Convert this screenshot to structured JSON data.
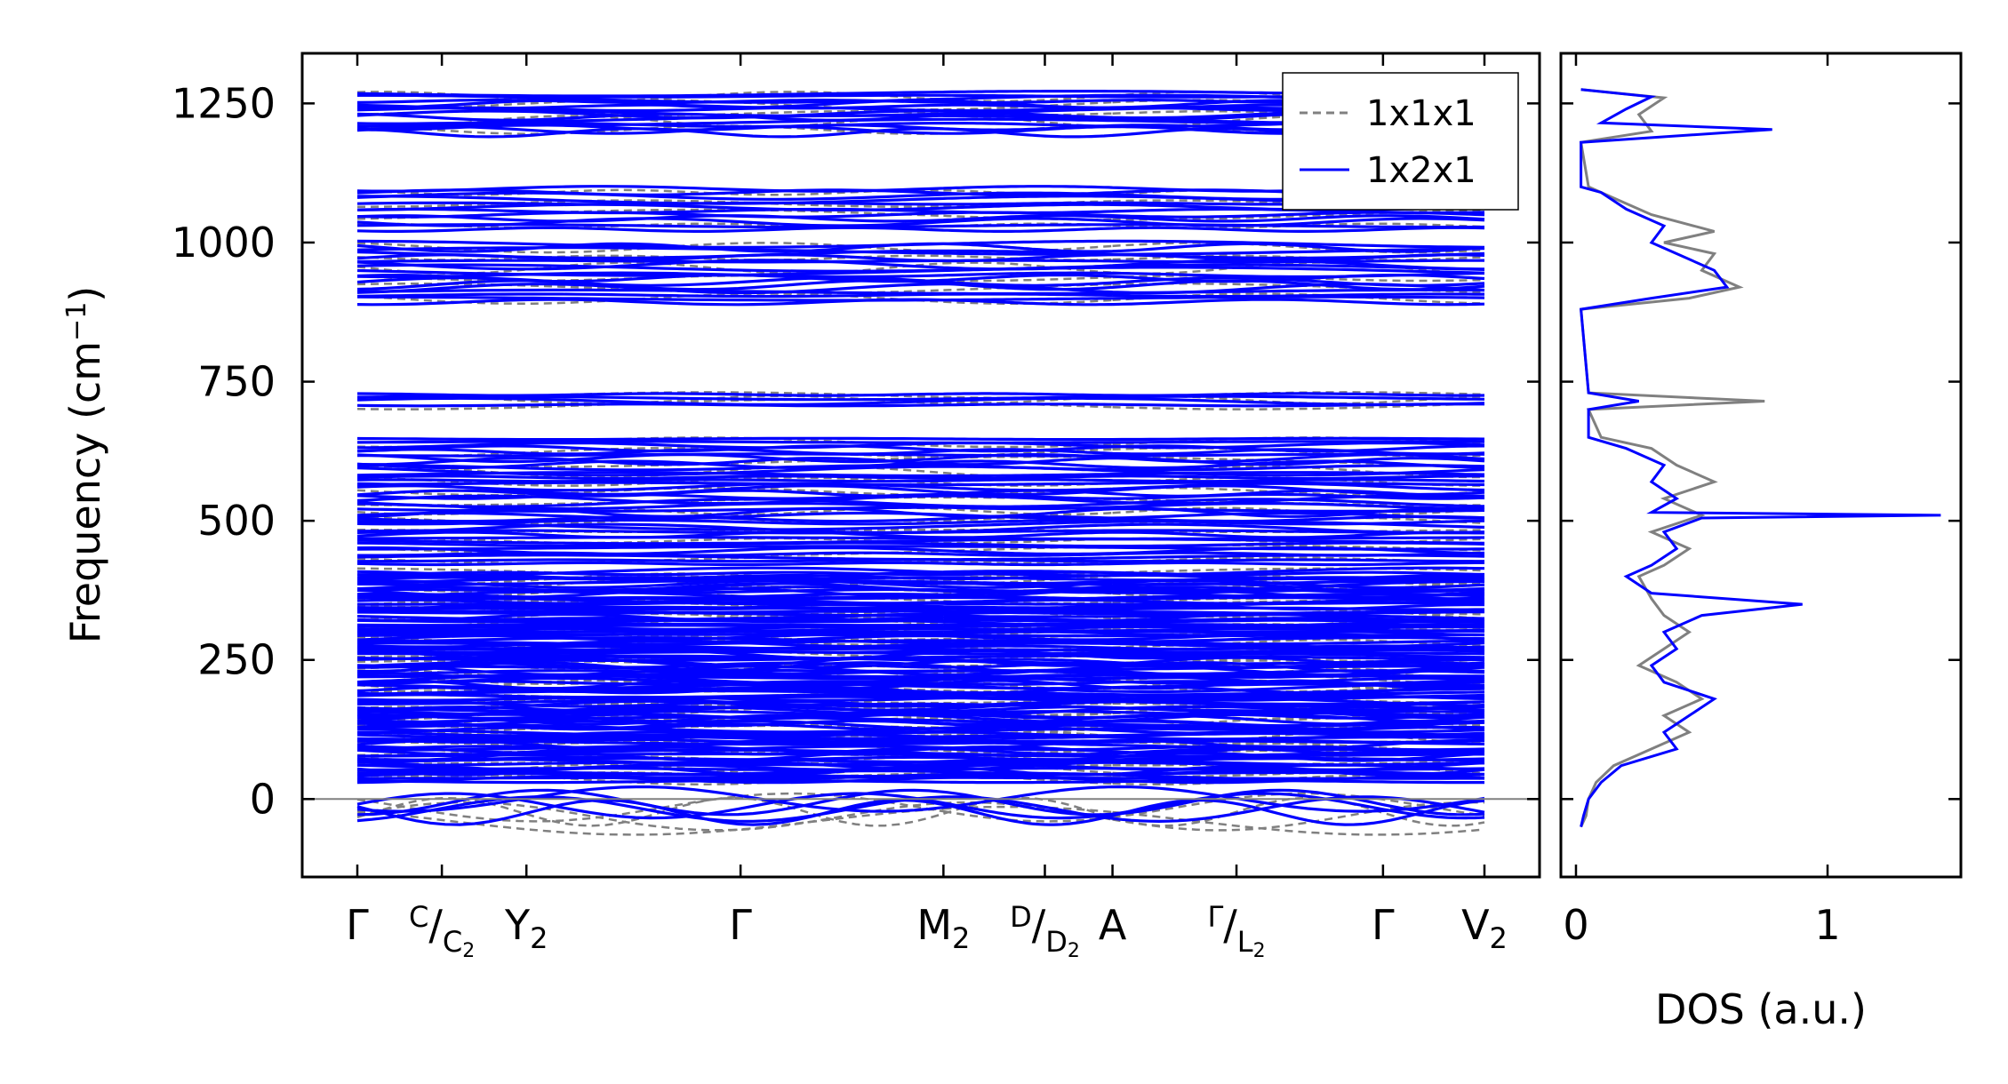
{
  "chart_data": [
    {
      "type": "line",
      "panel": "phonon-band-structure",
      "ylabel": "Frequency (cm",
      "ylabel_sup": "−1",
      "ylabel_close": ")",
      "ylim": [
        -140,
        1340
      ],
      "yticks": [
        0,
        250,
        500,
        750,
        1000,
        1250
      ],
      "ytick_labels": [
        "0",
        "250",
        "500",
        "750",
        "1000",
        "1250"
      ],
      "kpath": {
        "x_range": [
          0,
          1
        ],
        "segment_breaks": [
          0.0,
          0.15,
          0.34,
          0.52,
          0.67,
          0.82,
          1.0
        ],
        "discontinuities": [
          0.52,
          0.67
        ],
        "minor_tick_positions": [
          0.075,
          0.44,
          0.61,
          0.78
        ],
        "labels": [
          {
            "pos": 0.0,
            "text": "Γ"
          },
          {
            "pos": 0.075,
            "text": "C",
            "slash": "/",
            "sub_main": "C",
            "sub": "2"
          },
          {
            "pos": 0.15,
            "text": "Y",
            "sub": "2"
          },
          {
            "pos": 0.34,
            "text": "Γ"
          },
          {
            "pos": 0.52,
            "text": "M",
            "sub": "2"
          },
          {
            "pos": 0.61,
            "text": "D",
            "slash": "/",
            "sub_main": "D",
            "sub": "2"
          },
          {
            "pos": 0.67,
            "text": "A"
          },
          {
            "pos": 0.78,
            "text": "Γ",
            "slash": "/",
            "sub_main": "L",
            "sub": "2"
          },
          {
            "pos": 0.91,
            "text": "Γ"
          },
          {
            "pos": 1.0,
            "text": "V",
            "sub": "2"
          }
        ]
      },
      "band_clusters": [
        {
          "min": 1195,
          "max": 1270,
          "count": 16
        },
        {
          "min": 1020,
          "max": 1100,
          "count": 12
        },
        {
          "min": 890,
          "max": 1000,
          "count": 18
        },
        {
          "min": 705,
          "max": 730,
          "count": 4
        },
        {
          "min": 420,
          "max": 650,
          "count": 40
        },
        {
          "min": 30,
          "max": 410,
          "count": 120
        }
      ],
      "acoustic_dip_min": -50,
      "zero_line": 0,
      "series": [
        {
          "name": "1x1x1",
          "color": "#808080",
          "style": "dashed"
        },
        {
          "name": "1x2x1",
          "color": "#0000ff",
          "style": "solid"
        }
      ],
      "legend_position": "top-right"
    },
    {
      "type": "line",
      "panel": "density-of-states",
      "xlabel": "DOS (a.u.)",
      "xlim": [
        -0.06,
        1.53
      ],
      "xticks": [
        0,
        1
      ],
      "xtick_labels": [
        "0",
        "1"
      ],
      "ylim": [
        -140,
        1340
      ],
      "series": [
        {
          "name": "1x1x1",
          "color": "#808080",
          "points": [
            [
              -50,
              0.02
            ],
            [
              -30,
              0.04
            ],
            [
              0,
              0.05
            ],
            [
              30,
              0.08
            ],
            [
              60,
              0.15
            ],
            [
              90,
              0.3
            ],
            [
              120,
              0.45
            ],
            [
              150,
              0.35
            ],
            [
              180,
              0.5
            ],
            [
              210,
              0.4
            ],
            [
              240,
              0.25
            ],
            [
              270,
              0.35
            ],
            [
              300,
              0.45
            ],
            [
              330,
              0.35
            ],
            [
              360,
              0.3
            ],
            [
              400,
              0.25
            ],
            [
              420,
              0.35
            ],
            [
              450,
              0.45
            ],
            [
              480,
              0.3
            ],
            [
              510,
              0.5
            ],
            [
              540,
              0.35
            ],
            [
              570,
              0.55
            ],
            [
              600,
              0.4
            ],
            [
              630,
              0.3
            ],
            [
              650,
              0.1
            ],
            [
              700,
              0.05
            ],
            [
              715,
              0.75
            ],
            [
              730,
              0.05
            ],
            [
              880,
              0.02
            ],
            [
              900,
              0.45
            ],
            [
              920,
              0.65
            ],
            [
              950,
              0.5
            ],
            [
              980,
              0.55
            ],
            [
              1000,
              0.35
            ],
            [
              1020,
              0.55
            ],
            [
              1050,
              0.3
            ],
            [
              1080,
              0.15
            ],
            [
              1100,
              0.05
            ],
            [
              1180,
              0.02
            ],
            [
              1200,
              0.3
            ],
            [
              1230,
              0.25
            ],
            [
              1260,
              0.35
            ],
            [
              1275,
              0.02
            ]
          ]
        },
        {
          "name": "1x2x1",
          "color": "#0000ff",
          "points": [
            [
              -50,
              0.02
            ],
            [
              -30,
              0.03
            ],
            [
              0,
              0.05
            ],
            [
              30,
              0.1
            ],
            [
              60,
              0.18
            ],
            [
              90,
              0.4
            ],
            [
              120,
              0.35
            ],
            [
              150,
              0.45
            ],
            [
              180,
              0.55
            ],
            [
              210,
              0.35
            ],
            [
              240,
              0.3
            ],
            [
              270,
              0.4
            ],
            [
              300,
              0.35
            ],
            [
              330,
              0.5
            ],
            [
              350,
              0.9
            ],
            [
              370,
              0.3
            ],
            [
              400,
              0.2
            ],
            [
              420,
              0.3
            ],
            [
              450,
              0.4
            ],
            [
              480,
              0.35
            ],
            [
              505,
              0.5
            ],
            [
              510,
              1.45
            ],
            [
              515,
              0.3
            ],
            [
              540,
              0.4
            ],
            [
              570,
              0.3
            ],
            [
              600,
              0.35
            ],
            [
              630,
              0.2
            ],
            [
              650,
              0.05
            ],
            [
              700,
              0.05
            ],
            [
              715,
              0.25
            ],
            [
              730,
              0.05
            ],
            [
              880,
              0.02
            ],
            [
              900,
              0.3
            ],
            [
              920,
              0.6
            ],
            [
              950,
              0.55
            ],
            [
              980,
              0.4
            ],
            [
              1000,
              0.3
            ],
            [
              1030,
              0.35
            ],
            [
              1060,
              0.2
            ],
            [
              1090,
              0.1
            ],
            [
              1100,
              0.02
            ],
            [
              1180,
              0.02
            ],
            [
              1203,
              0.78
            ],
            [
              1215,
              0.1
            ],
            [
              1240,
              0.2
            ],
            [
              1262,
              0.3
            ],
            [
              1275,
              0.02
            ]
          ]
        }
      ]
    }
  ]
}
